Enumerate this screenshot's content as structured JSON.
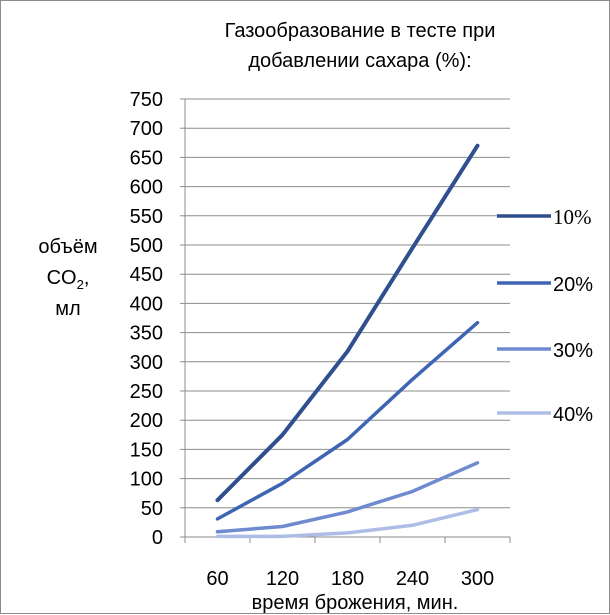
{
  "chart_data": {
    "type": "line",
    "title_lines": [
      "Газообразование в тесте при",
      "добавлении сахара (%):"
    ],
    "ylabel_lines": [
      "объём",
      "CO",
      "2",
      ",",
      "мл"
    ],
    "xlabel": "время брожения, мин.",
    "categories": [
      "60",
      "120",
      "180",
      "240",
      "300"
    ],
    "ylim": [
      0,
      750
    ],
    "yticks": [
      "0",
      "50",
      "100",
      "150",
      "200",
      "250",
      "300",
      "350",
      "400",
      "450",
      "500",
      "550",
      "600",
      "650",
      "700",
      "750"
    ],
    "grid": true,
    "legend_position": "right",
    "series": [
      {
        "name": "10%",
        "values": [
          63,
          175,
          318,
          495,
          670
        ],
        "color": "#2f4f8f"
      },
      {
        "name": "20%",
        "values": [
          31,
          92,
          167,
          270,
          367
        ],
        "color": "#3e64b4"
      },
      {
        "name": "30%",
        "values": [
          9,
          18,
          43,
          78,
          127
        ],
        "color": "#6f8bd0"
      },
      {
        "name": "40%",
        "values": [
          1,
          1,
          7,
          20,
          47
        ],
        "color": "#aebde6"
      }
    ]
  }
}
